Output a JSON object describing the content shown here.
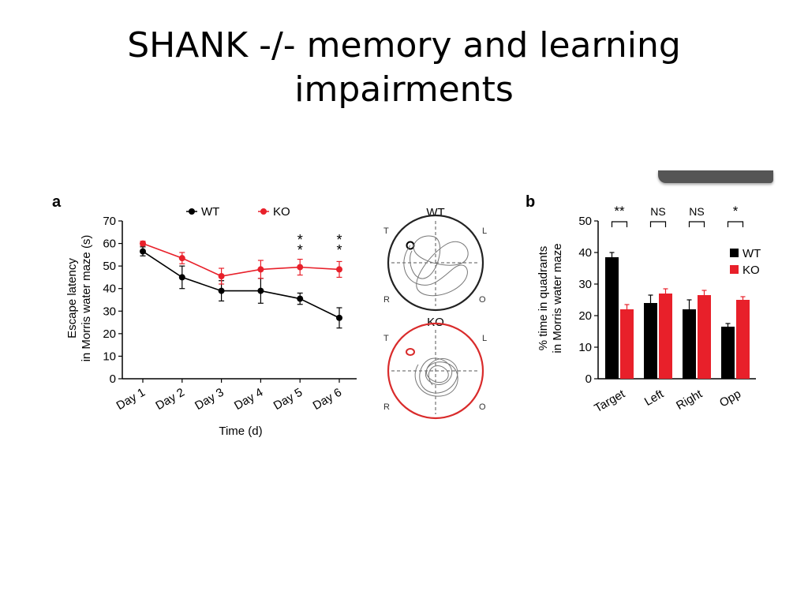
{
  "slide": {
    "title_line1": "SHANK -/- memory and learning",
    "title_line2": "impairments"
  },
  "colors": {
    "wt": "#000000",
    "ko": "#e8202a",
    "arena_wt": "#222222",
    "arena_ko": "#d92b2b"
  },
  "chart_data": [
    {
      "type": "line",
      "panel_label": "a",
      "xlabel": "Time (d)",
      "ylabel_line1": "Escape latency",
      "ylabel_line2": "in Morris water maze (s)",
      "categories": [
        "Day 1",
        "Day 2",
        "Day 3",
        "Day 4",
        "Day 5",
        "Day 6"
      ],
      "yticks": [
        "0",
        "10",
        "20",
        "30",
        "40",
        "50",
        "60",
        "70"
      ],
      "ylim": [
        0,
        70
      ],
      "legend": [
        "WT",
        "KO"
      ],
      "series": [
        {
          "name": "WT",
          "values": [
            56.5,
            45,
            39,
            39,
            35.5,
            27
          ],
          "errors": [
            2,
            5,
            4.5,
            5.5,
            2.5,
            4.5
          ]
        },
        {
          "name": "KO",
          "values": [
            60,
            53.5,
            45.5,
            48.5,
            49.5,
            48.5
          ],
          "errors": [
            1,
            2.5,
            3.5,
            4,
            3.5,
            3.5
          ]
        }
      ],
      "significance": [
        "",
        "",
        "",
        "",
        "**",
        "**"
      ],
      "arenas": [
        {
          "name": "WT",
          "quadrants": [
            "T",
            "L",
            "R",
            "O"
          ]
        },
        {
          "name": "KO",
          "quadrants": [
            "T",
            "L",
            "R",
            "O"
          ]
        }
      ]
    },
    {
      "type": "bar",
      "panel_label": "b",
      "ylabel_line1": "% time in quadrants",
      "ylabel_line2": "in Morris water maze",
      "categories": [
        "Target",
        "Left",
        "Right",
        "Opp"
      ],
      "yticks": [
        "0",
        "10",
        "20",
        "30",
        "40",
        "50"
      ],
      "ylim": [
        0,
        50
      ],
      "legend": [
        "WT",
        "KO"
      ],
      "series": [
        {
          "name": "WT",
          "values": [
            38.5,
            24,
            22,
            16.5
          ],
          "errors": [
            1.5,
            2.5,
            3,
            1
          ]
        },
        {
          "name": "KO",
          "values": [
            22,
            27,
            26.5,
            25
          ],
          "errors": [
            1.5,
            1.5,
            1.5,
            1
          ]
        }
      ],
      "significance": [
        "**",
        "NS",
        "NS",
        "*"
      ]
    }
  ]
}
